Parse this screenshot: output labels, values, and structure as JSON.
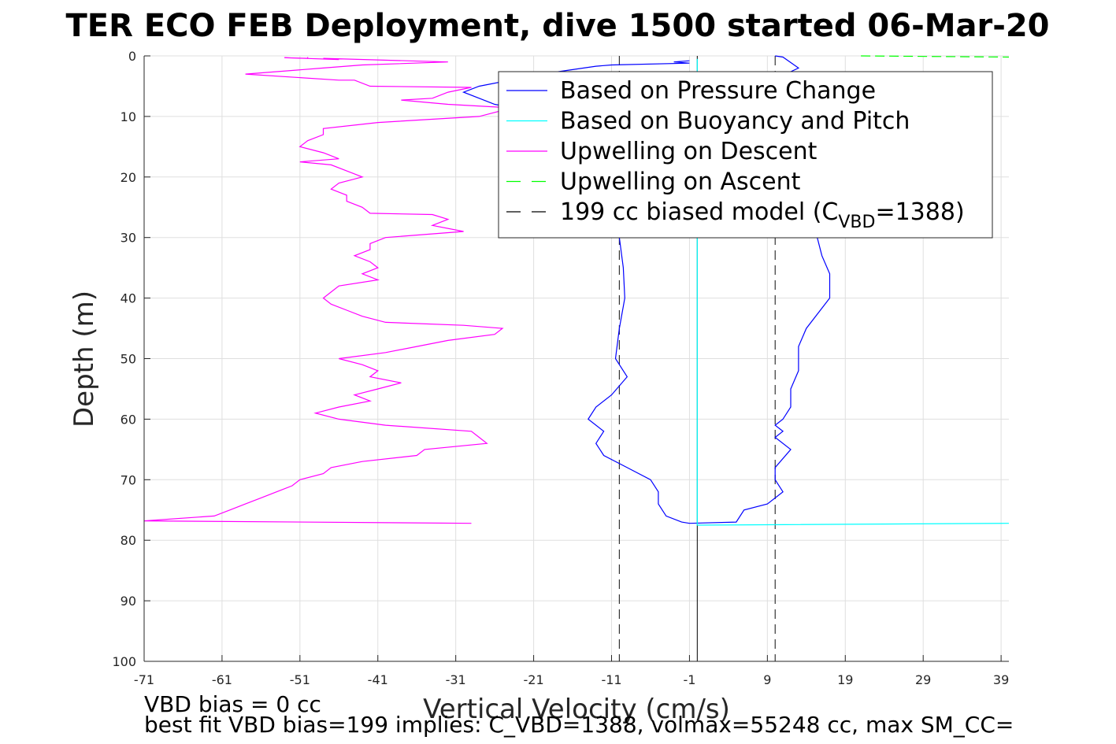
{
  "chart_data": {
    "type": "line",
    "title": "TER ECO FEB Deployment, dive 1500 started 06-Mar-20",
    "xlabel": "Vertical Velocity (cm/s)",
    "ylabel": "Depth (m)",
    "xlim": [
      -71,
      40
    ],
    "ylim": [
      0,
      100
    ],
    "y_reversed": true,
    "grid": true,
    "xticks": [
      "-71",
      "-61",
      "-51",
      "-41",
      "-31",
      "-21",
      "-11",
      "-1",
      "9",
      "19",
      "29",
      "39"
    ],
    "yticks": [
      "0",
      "10",
      "20",
      "30",
      "40",
      "50",
      "60",
      "70",
      "80",
      "90",
      "100"
    ],
    "legend_position": "top-right",
    "legend": [
      {
        "label": "Based on Pressure Change",
        "color": "#0000ff",
        "dash": "solid"
      },
      {
        "label": "Based on Buoyancy and Pitch",
        "color": "#00ffff",
        "dash": "solid"
      },
      {
        "label": "Upwelling on Descent",
        "color": "#ff00ff",
        "dash": "solid"
      },
      {
        "label": "Upwelling on Ascent",
        "color": "#00ff00",
        "dash": "dashed"
      },
      {
        "label": "199 cc biased model (C",
        "sub": "VBD",
        "suffix": "=1388)",
        "color": "#000000",
        "dash": "dashed"
      }
    ],
    "series": [
      {
        "name": "Based on Pressure Change",
        "color": "#0000ff",
        "points": [
          [
            -1,
            0.8
          ],
          [
            -3,
            1.0
          ],
          [
            -1,
            1.2
          ],
          [
            -11,
            1.5
          ],
          [
            -13,
            1.7
          ],
          [
            -20,
            3
          ],
          [
            -28,
            5
          ],
          [
            -30,
            6
          ],
          [
            -26,
            8
          ],
          [
            -18,
            10
          ],
          [
            -14,
            12
          ],
          [
            -12,
            20
          ],
          [
            -11,
            25
          ],
          [
            -10,
            30
          ],
          [
            -9.5,
            35
          ],
          [
            -9.3,
            40
          ],
          [
            -10,
            45
          ],
          [
            -10.5,
            50
          ],
          [
            -9,
            53
          ],
          [
            -11,
            56
          ],
          [
            -13,
            58
          ],
          [
            -14,
            60
          ],
          [
            -12,
            62
          ],
          [
            -13,
            64
          ],
          [
            -12,
            66
          ],
          [
            -9,
            68
          ],
          [
            -6,
            70
          ],
          [
            -5,
            72
          ],
          [
            -5,
            74
          ],
          [
            -4,
            76
          ],
          [
            -2,
            77
          ],
          [
            -1,
            77.2
          ],
          [
            5,
            77
          ],
          [
            6,
            75
          ],
          [
            9,
            74
          ],
          [
            11,
            72
          ],
          [
            10,
            70
          ],
          [
            10,
            68
          ],
          [
            12,
            65
          ],
          [
            10,
            63
          ],
          [
            11,
            62
          ],
          [
            10,
            61
          ],
          [
            11,
            60
          ],
          [
            12,
            58
          ],
          [
            12,
            55
          ],
          [
            13,
            52
          ],
          [
            13,
            48
          ],
          [
            14,
            45
          ],
          [
            17,
            40
          ],
          [
            17,
            36
          ],
          [
            16,
            33
          ],
          [
            15,
            28
          ],
          [
            14,
            24
          ],
          [
            13,
            20
          ],
          [
            12,
            17
          ],
          [
            10,
            10
          ],
          [
            8,
            5
          ],
          [
            13,
            2
          ],
          [
            11,
            0.2
          ],
          [
            10,
            0
          ]
        ]
      },
      {
        "name": "Based on Buoyancy and Pitch",
        "color": "#00ffff",
        "points": [
          [
            0,
            0.5
          ],
          [
            0,
            77.5
          ],
          [
            0,
            77.5
          ],
          [
            40,
            77.2
          ]
        ]
      },
      {
        "name": "Upwelling on Descent",
        "color": "#ff00ff",
        "points": [
          [
            -50,
            0.2
          ],
          [
            -50,
            0.4
          ],
          [
            -53,
            0.3
          ],
          [
            -46,
            0.6
          ],
          [
            -48,
            0.4
          ],
          [
            -32,
            1
          ],
          [
            -43,
            1.5
          ],
          [
            -48,
            2
          ],
          [
            -58,
            3
          ],
          [
            -46,
            4
          ],
          [
            -44,
            4
          ],
          [
            -42,
            5
          ],
          [
            -29,
            5.2
          ],
          [
            -32,
            6
          ],
          [
            -34,
            7
          ],
          [
            -38,
            7.3
          ],
          [
            -32,
            8
          ],
          [
            -25,
            8.5
          ],
          [
            -25,
            9
          ],
          [
            -28,
            10
          ],
          [
            -41,
            11
          ],
          [
            -48,
            12
          ],
          [
            -48,
            13
          ],
          [
            -50,
            14
          ],
          [
            -51,
            15
          ],
          [
            -48,
            16
          ],
          [
            -46,
            17
          ],
          [
            -51,
            17.5
          ],
          [
            -47,
            18
          ],
          [
            -45,
            19
          ],
          [
            -43,
            20
          ],
          [
            -46,
            21
          ],
          [
            -47,
            22
          ],
          [
            -45,
            23
          ],
          [
            -45,
            24
          ],
          [
            -43,
            25
          ],
          [
            -42,
            26
          ],
          [
            -34,
            26.2
          ],
          [
            -32,
            27
          ],
          [
            -34,
            28
          ],
          [
            -30,
            29
          ],
          [
            -40,
            30
          ],
          [
            -42,
            31
          ],
          [
            -42,
            32
          ],
          [
            -44,
            33
          ],
          [
            -42,
            34
          ],
          [
            -41,
            35
          ],
          [
            -43,
            36
          ],
          [
            -41,
            37
          ],
          [
            -46,
            38
          ],
          [
            -47,
            39
          ],
          [
            -48,
            40
          ],
          [
            -47,
            41
          ],
          [
            -45,
            42
          ],
          [
            -43,
            43
          ],
          [
            -40,
            44
          ],
          [
            -30,
            44.5
          ],
          [
            -25,
            45
          ],
          [
            -26,
            46
          ],
          [
            -32,
            47
          ],
          [
            -36,
            48
          ],
          [
            -40,
            49
          ],
          [
            -46,
            50
          ],
          [
            -43,
            51
          ],
          [
            -41,
            52
          ],
          [
            -42,
            53
          ],
          [
            -38,
            54
          ],
          [
            -41,
            55
          ],
          [
            -44,
            56
          ],
          [
            -42,
            57
          ],
          [
            -46,
            58
          ],
          [
            -49,
            59
          ],
          [
            -46,
            60
          ],
          [
            -40,
            61
          ],
          [
            -29,
            62
          ],
          [
            -28,
            63
          ],
          [
            -27,
            64
          ],
          [
            -35,
            65
          ],
          [
            -36,
            66
          ],
          [
            -43,
            67
          ],
          [
            -47,
            68
          ],
          [
            -48,
            69
          ],
          [
            -51,
            70
          ],
          [
            -52,
            71
          ],
          [
            -54,
            72
          ],
          [
            -56,
            73
          ],
          [
            -58,
            74
          ],
          [
            -60,
            75
          ],
          [
            -62,
            76
          ],
          [
            -71,
            76.8
          ],
          [
            -29,
            77.2
          ]
        ]
      },
      {
        "name": "Upwelling on Ascent",
        "color": "#00ff00",
        "points": [
          [
            21,
            0
          ],
          [
            40,
            0.2
          ]
        ]
      }
    ],
    "model_lines": [
      {
        "name": "199 cc biased model",
        "x": -10,
        "dash": "dashed"
      },
      {
        "name": "199 cc biased model",
        "x": 10,
        "dash": "dashed"
      }
    ],
    "zero_line_x": 0,
    "footer": [
      "VBD bias = 0 cc",
      "best fit VBD bias=199 implies: C_VBD=1388, volmax=55248 cc, max SM_CC="
    ]
  }
}
